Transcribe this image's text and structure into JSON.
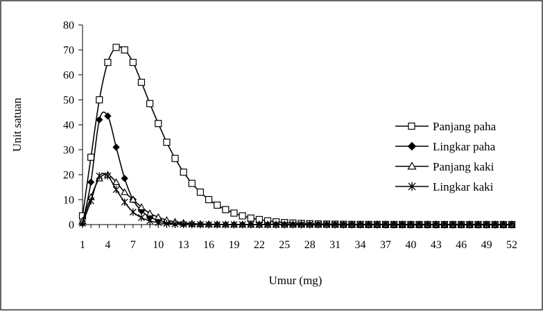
{
  "chart_data": {
    "type": "line",
    "title": "",
    "xlabel": "Umur (mg)",
    "ylabel": "Unit satuan",
    "xlim": [
      1,
      52
    ],
    "ylim": [
      0,
      80
    ],
    "xticks": [
      1,
      4,
      7,
      10,
      13,
      16,
      19,
      22,
      25,
      28,
      31,
      34,
      37,
      40,
      43,
      46,
      49,
      52
    ],
    "yticks": [
      0,
      10,
      20,
      30,
      40,
      50,
      60,
      70,
      80
    ],
    "grid": false,
    "legend_position": "right",
    "x": [
      1,
      2,
      3,
      4,
      5,
      6,
      7,
      8,
      9,
      10,
      11,
      12,
      13,
      14,
      15,
      16,
      17,
      18,
      19,
      20,
      21,
      22,
      23,
      24,
      25,
      26,
      27,
      28,
      29,
      30,
      31,
      32,
      33,
      34,
      35,
      36,
      37,
      38,
      39,
      40,
      41,
      42,
      43,
      44,
      45,
      46,
      47,
      48,
      49,
      50,
      51,
      52
    ],
    "series": [
      {
        "name": "Panjang paha",
        "marker": "square-open",
        "values": [
          3.5,
          27,
          50,
          65,
          71,
          70,
          65,
          57,
          48.5,
          40.5,
          33,
          26.5,
          21,
          16.5,
          13,
          10,
          7.8,
          6,
          4.6,
          3.5,
          2.6,
          2,
          1.5,
          1.1,
          0.8,
          0.6,
          0.45,
          0.35,
          0.25,
          0.2,
          0.15,
          0.1,
          0.08,
          0.06,
          0.05,
          0.04,
          0.03,
          0.02,
          0.02,
          0.01,
          0.01,
          0.01,
          0,
          0,
          0,
          0,
          0,
          0,
          0,
          0,
          0,
          0
        ]
      },
      {
        "name": "Lingkar paha",
        "marker": "diamond-filled",
        "values": [
          0.5,
          17,
          42,
          43.5,
          31,
          18.5,
          10,
          5.5,
          3,
          1.7,
          1,
          0.5,
          0.3,
          0.2,
          0.1,
          0.05,
          0.03,
          0.02,
          0.01,
          0,
          0,
          0,
          0,
          0,
          0,
          0,
          0,
          0,
          0,
          0,
          0,
          0,
          0,
          0,
          0,
          0,
          0,
          0,
          0,
          0,
          0,
          0,
          0,
          0,
          0,
          0,
          0,
          0,
          0,
          0,
          0,
          0
        ]
      },
      {
        "name": "Panjang kaki",
        "marker": "triangle-open",
        "values": [
          1.5,
          11,
          18.5,
          20,
          17,
          13,
          10,
          7,
          4.5,
          3,
          1.8,
          1.1,
          0.7,
          0.4,
          0.25,
          0.15,
          0.1,
          0.05,
          0.03,
          0.02,
          0.01,
          0,
          0,
          0,
          0,
          0,
          0,
          0,
          0,
          0,
          0,
          0,
          0,
          0,
          0,
          0,
          0,
          0,
          0,
          0,
          0,
          0,
          0,
          0,
          0,
          0,
          0,
          0,
          0,
          0,
          0,
          0
        ]
      },
      {
        "name": "Lingkar kaki",
        "marker": "star",
        "values": [
          0.5,
          9.5,
          19.5,
          19.5,
          14,
          9,
          5,
          2.8,
          1.5,
          0.8,
          0.4,
          0.2,
          0.1,
          0.05,
          0.03,
          0.01,
          0,
          0,
          0,
          0,
          0,
          0,
          0,
          0,
          0,
          0,
          0,
          0,
          0,
          0,
          0,
          0,
          0,
          0,
          0,
          0,
          0,
          0,
          0,
          0,
          0,
          0,
          0,
          0,
          0,
          0,
          0,
          0,
          0,
          0,
          0,
          0
        ]
      }
    ]
  }
}
